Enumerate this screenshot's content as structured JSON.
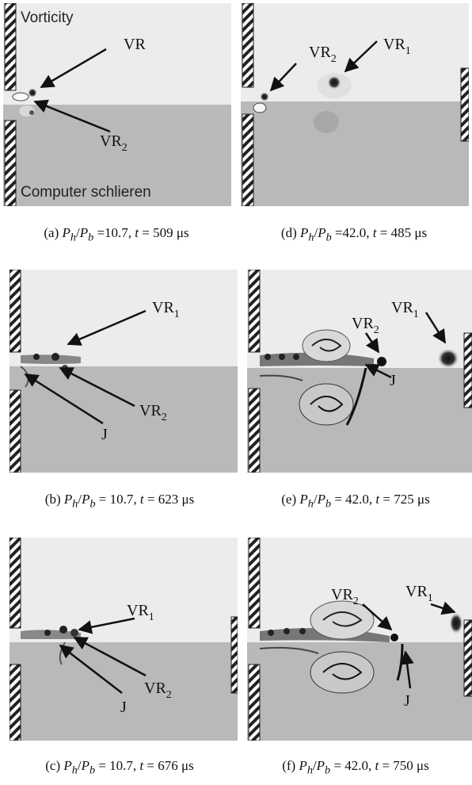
{
  "figure": {
    "panels": [
      {
        "id": "a",
        "corner_labels": {
          "top": "Vorticity",
          "bottom": "Computer schlieren"
        },
        "annotations": [
          {
            "base": "VR",
            "sub": ""
          },
          {
            "base": "VR",
            "sub": "2"
          }
        ],
        "caption": {
          "prefix": "(a) ",
          "ratio": "P",
          "ratio_h": "h",
          "ratio_b": "b",
          "ratio_value": " =10.7, ",
          "t_symbol": "t",
          "t_value": " = 509 μs"
        }
      },
      {
        "id": "d",
        "annotations": [
          {
            "base": "VR",
            "sub": "2"
          },
          {
            "base": "VR",
            "sub": "1"
          }
        ],
        "caption": {
          "prefix": "(d) ",
          "ratio": "P",
          "ratio_h": "h",
          "ratio_b": "b",
          "ratio_value": " =42.0, ",
          "t_symbol": "t",
          "t_value": " = 485 μs"
        }
      },
      {
        "id": "b",
        "annotations": [
          {
            "base": "VR",
            "sub": "1"
          },
          {
            "base": "VR",
            "sub": "2"
          },
          {
            "base": "J",
            "sub": ""
          }
        ],
        "caption": {
          "prefix": "(b) ",
          "ratio": "P",
          "ratio_h": "h",
          "ratio_b": "b",
          "ratio_value": " = 10.7, ",
          "t_symbol": "t",
          "t_value": " = 623 μs"
        }
      },
      {
        "id": "e",
        "annotations": [
          {
            "base": "VR",
            "sub": "1"
          },
          {
            "base": "VR",
            "sub": "2"
          },
          {
            "base": "J",
            "sub": ""
          }
        ],
        "caption": {
          "prefix": "(e) ",
          "ratio": "P",
          "ratio_h": "h",
          "ratio_b": "b",
          "ratio_value": " = 42.0, ",
          "t_symbol": "t",
          "t_value": " = 725 μs"
        }
      },
      {
        "id": "c",
        "annotations": [
          {
            "base": "VR",
            "sub": "1"
          },
          {
            "base": "VR",
            "sub": "2"
          },
          {
            "base": "J",
            "sub": ""
          }
        ],
        "caption": {
          "prefix": "(c) ",
          "ratio": "P",
          "ratio_h": "h",
          "ratio_b": "b",
          "ratio_value": " = 10.7, ",
          "t_symbol": "t",
          "t_value": " = 676 μs"
        }
      },
      {
        "id": "f",
        "annotations": [
          {
            "base": "VR",
            "sub": "2"
          },
          {
            "base": "VR",
            "sub": "1"
          },
          {
            "base": "J",
            "sub": ""
          }
        ],
        "caption": {
          "prefix": "(f) ",
          "ratio": "P",
          "ratio_h": "h",
          "ratio_b": "b",
          "ratio_value": " = 42.0, ",
          "t_symbol": "t",
          "t_value": " = 750 μs"
        }
      }
    ]
  }
}
